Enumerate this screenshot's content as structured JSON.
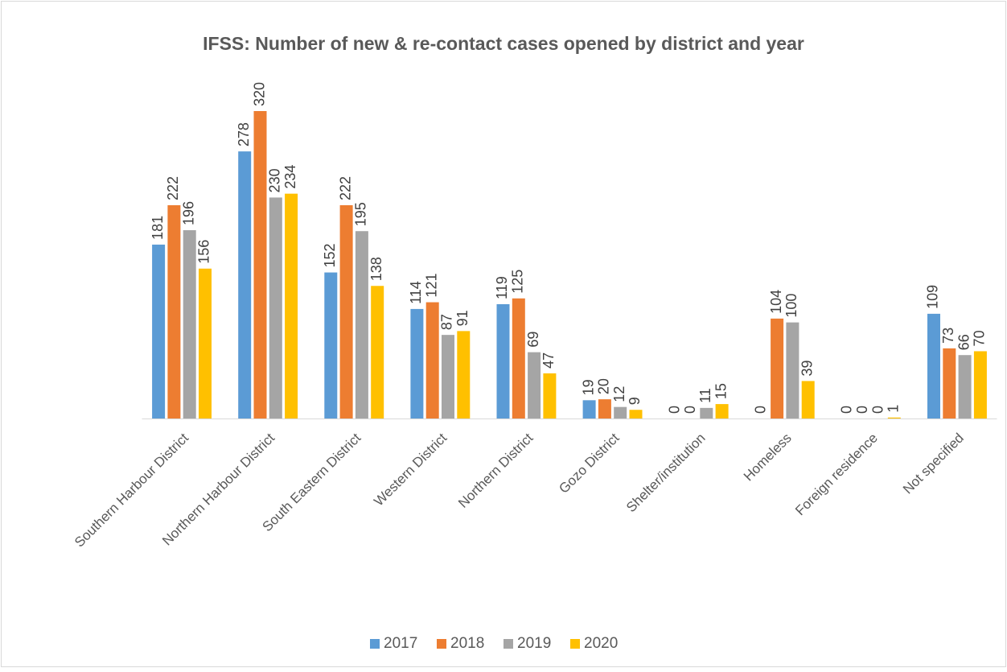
{
  "chart_data": {
    "type": "bar",
    "title": "IFSS: Number of new & re-contact cases opened by district and year",
    "categories": [
      "Southern Harbour District",
      "Northern Harbour District",
      "South Eastern District",
      "Western District",
      "Northern District",
      "Gozo District",
      "Shelter/institution",
      "Homeless",
      "Foreign residence",
      "Not specified"
    ],
    "series": [
      {
        "name": "2017",
        "color": "#5b9bd5",
        "values": [
          181,
          278,
          152,
          114,
          119,
          19,
          0,
          0,
          0,
          109
        ]
      },
      {
        "name": "2018",
        "color": "#ed7d31",
        "values": [
          222,
          320,
          222,
          121,
          125,
          20,
          0,
          104,
          0,
          73
        ]
      },
      {
        "name": "2019",
        "color": "#a5a5a5",
        "values": [
          196,
          230,
          195,
          87,
          69,
          12,
          11,
          100,
          0,
          66
        ]
      },
      {
        "name": "2020",
        "color": "#ffc000",
        "values": [
          156,
          234,
          138,
          91,
          47,
          9,
          15,
          39,
          1,
          70
        ]
      }
    ],
    "legend": "bottom"
  }
}
